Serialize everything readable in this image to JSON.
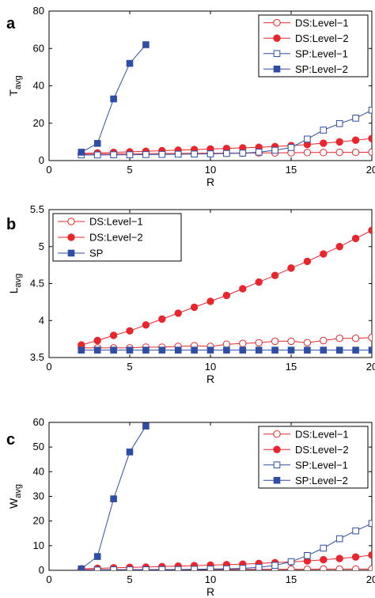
{
  "colors": {
    "ds": "#e8272d",
    "sp": "#2e4ea6"
  },
  "chart_data": [
    {
      "panel": "a",
      "type": "line",
      "xlabel": "R",
      "ylabel_main": "T",
      "ylabel_sub": "avg",
      "xlim": [
        0,
        20
      ],
      "ylim": [
        0,
        80
      ],
      "xticks": [
        0,
        5,
        10,
        15,
        20
      ],
      "xtick_labels": [
        "0",
        "5",
        "10",
        "15",
        "20"
      ],
      "yticks": [
        0,
        20,
        40,
        60,
        80
      ],
      "ytick_labels": [
        "0",
        "20",
        "40",
        "60",
        "80"
      ],
      "legend_position": "top-right",
      "series": [
        {
          "name": "DS:Level−1",
          "color": "#e8272d",
          "marker": "circle-open",
          "x": [
            2,
            3,
            4,
            5,
            6,
            7,
            8,
            9,
            10,
            11,
            12,
            13,
            14,
            15,
            16,
            17,
            18,
            19,
            20
          ],
          "y": [
            3.4,
            3.5,
            3.6,
            3.7,
            3.7,
            3.8,
            3.8,
            3.9,
            3.9,
            4.0,
            4.0,
            4.1,
            4.1,
            4.2,
            4.3,
            4.3,
            4.4,
            4.4,
            4.5
          ]
        },
        {
          "name": "DS:Level−2",
          "color": "#e8272d",
          "marker": "circle-filled",
          "x": [
            2,
            3,
            4,
            5,
            6,
            7,
            8,
            9,
            10,
            11,
            12,
            13,
            14,
            15,
            16,
            17,
            18,
            19,
            20
          ],
          "y": [
            3.8,
            4.1,
            4.4,
            4.7,
            5.0,
            5.3,
            5.6,
            5.9,
            6.2,
            6.5,
            6.8,
            7.1,
            7.5,
            8.0,
            8.6,
            9.3,
            10.0,
            10.9,
            11.8
          ]
        },
        {
          "name": "SP:Level−1",
          "color": "#2e4ea6",
          "marker": "square-open",
          "x": [
            2,
            3,
            4,
            5,
            6,
            7,
            8,
            9,
            10,
            11,
            12,
            13,
            14,
            15,
            16,
            17,
            18,
            19,
            20
          ],
          "y": [
            3.0,
            3.0,
            3.1,
            3.1,
            3.2,
            3.3,
            3.4,
            3.5,
            3.6,
            3.8,
            4.0,
            4.5,
            5.5,
            7.0,
            11.5,
            16.3,
            19.8,
            22.7,
            27.0
          ]
        },
        {
          "name": "SP:Level−2",
          "color": "#2e4ea6",
          "marker": "square-filled",
          "x": [
            2,
            3,
            4,
            5,
            6
          ],
          "y": [
            4.5,
            9.2,
            33.0,
            52.0,
            62.0
          ]
        }
      ]
    },
    {
      "panel": "b",
      "type": "line",
      "xlabel": "R",
      "ylabel_main": "L",
      "ylabel_sub": "avg",
      "xlim": [
        0,
        20
      ],
      "ylim": [
        3.5,
        5.5
      ],
      "xticks": [
        0,
        5,
        10,
        15,
        20
      ],
      "xtick_labels": [
        "0",
        "5",
        "10",
        "15",
        "20"
      ],
      "yticks": [
        3.5,
        4,
        4.5,
        5,
        5.5
      ],
      "ytick_labels": [
        "3.5",
        "4",
        "4.5",
        "5",
        "5.5"
      ],
      "legend_position": "top-left",
      "series": [
        {
          "name": "DS:Level−1",
          "color": "#e8272d",
          "marker": "circle-open",
          "x": [
            2,
            3,
            4,
            5,
            6,
            7,
            8,
            9,
            10,
            11,
            12,
            13,
            14,
            15,
            16,
            17,
            18,
            19,
            20
          ],
          "y": [
            3.63,
            3.63,
            3.63,
            3.63,
            3.64,
            3.64,
            3.65,
            3.66,
            3.65,
            3.68,
            3.69,
            3.7,
            3.72,
            3.72,
            3.7,
            3.73,
            3.76,
            3.76,
            3.77
          ]
        },
        {
          "name": "DS:Level−2",
          "color": "#e8272d",
          "marker": "circle-filled",
          "x": [
            2,
            3,
            4,
            5,
            6,
            7,
            8,
            9,
            10,
            11,
            12,
            13,
            14,
            15,
            16,
            17,
            18,
            19,
            20
          ],
          "y": [
            3.67,
            3.73,
            3.8,
            3.86,
            3.94,
            4.02,
            4.1,
            4.18,
            4.26,
            4.34,
            4.43,
            4.52,
            4.61,
            4.71,
            4.8,
            4.9,
            5.0,
            5.11,
            5.22
          ]
        },
        {
          "name": "SP",
          "color": "#2e4ea6",
          "marker": "square-filled",
          "x": [
            2,
            3,
            4,
            5,
            6,
            7,
            8,
            9,
            10,
            11,
            12,
            13,
            14,
            15,
            16,
            17,
            18,
            19,
            20
          ],
          "y": [
            3.6,
            3.6,
            3.6,
            3.6,
            3.6,
            3.6,
            3.6,
            3.6,
            3.6,
            3.6,
            3.6,
            3.6,
            3.6,
            3.6,
            3.6,
            3.6,
            3.6,
            3.6,
            3.6
          ]
        }
      ]
    },
    {
      "panel": "c",
      "type": "line",
      "xlabel": "R",
      "ylabel_main": "W",
      "ylabel_sub": "avg",
      "xlim": [
        0,
        20
      ],
      "ylim": [
        0,
        60
      ],
      "xticks": [
        0,
        5,
        10,
        15,
        20
      ],
      "xtick_labels": [
        "0",
        "5",
        "10",
        "15",
        "20"
      ],
      "yticks": [
        0,
        10,
        20,
        30,
        40,
        50,
        60
      ],
      "ytick_labels": [
        "0",
        "10",
        "20",
        "30",
        "40",
        "50",
        "60"
      ],
      "legend_position": "top-right",
      "series": [
        {
          "name": "DS:Level−1",
          "color": "#e8272d",
          "marker": "circle-open",
          "x": [
            2,
            3,
            4,
            5,
            6,
            7,
            8,
            9,
            10,
            11,
            12,
            13,
            14,
            15,
            16,
            17,
            18,
            19,
            20
          ],
          "y": [
            0.3,
            0.3,
            0.3,
            0.3,
            0.3,
            0.3,
            0.3,
            0.3,
            0.4,
            0.4,
            0.4,
            0.4,
            0.4,
            0.4,
            0.4,
            0.5,
            0.5,
            0.5,
            0.5
          ]
        },
        {
          "name": "DS:Level−2",
          "color": "#e8272d",
          "marker": "circle-filled",
          "x": [
            2,
            3,
            4,
            5,
            6,
            7,
            8,
            9,
            10,
            11,
            12,
            13,
            14,
            15,
            16,
            17,
            18,
            19,
            20
          ],
          "y": [
            0.6,
            0.8,
            1.0,
            1.2,
            1.3,
            1.5,
            1.7,
            1.9,
            2.1,
            2.3,
            2.5,
            2.8,
            3.1,
            3.4,
            3.8,
            4.3,
            4.8,
            5.4,
            6.2
          ]
        },
        {
          "name": "SP:Level−1",
          "color": "#2e4ea6",
          "marker": "square-open",
          "x": [
            2,
            3,
            4,
            5,
            6,
            7,
            8,
            9,
            10,
            11,
            12,
            13,
            14,
            15,
            16,
            17,
            18,
            19,
            20
          ],
          "y": [
            0.1,
            0.1,
            0.2,
            0.2,
            0.2,
            0.3,
            0.3,
            0.4,
            0.5,
            0.6,
            0.8,
            1.2,
            2.0,
            3.5,
            6.0,
            9.0,
            12.8,
            16.0,
            19.0
          ]
        },
        {
          "name": "SP:Level−2",
          "color": "#2e4ea6",
          "marker": "square-filled",
          "x": [
            2,
            3,
            4,
            5,
            6
          ],
          "y": [
            0.6,
            5.6,
            29.0,
            48.0,
            58.5
          ]
        }
      ]
    }
  ]
}
